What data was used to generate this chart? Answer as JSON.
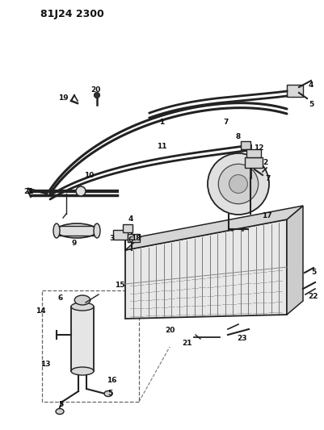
{
  "bg_color": "#ffffff",
  "title": "81J24 2300",
  "fig_width": 4.01,
  "fig_height": 5.33,
  "dpi": 100
}
